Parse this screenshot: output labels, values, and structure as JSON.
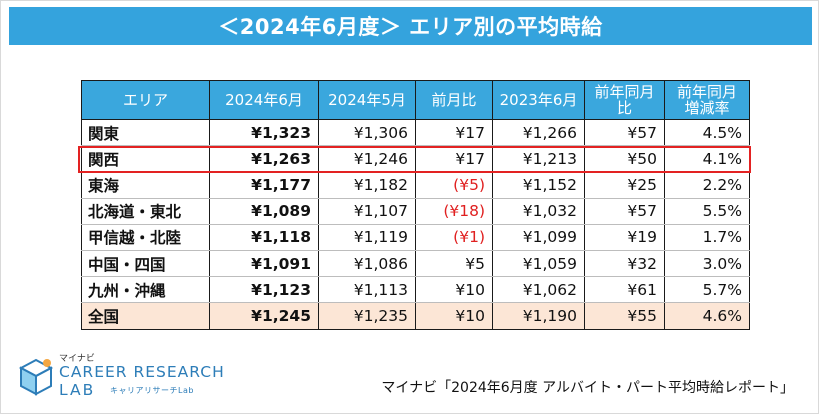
{
  "title": "＜2024年6月度＞ エリア別の平均時給",
  "table": {
    "headers": [
      "エリア",
      "2024年6月",
      "2024年5月",
      "前月比",
      "2023年6月",
      "前年同月比",
      "前年同月\n増減率"
    ],
    "rows": [
      [
        "関東",
        "¥1,323",
        "¥1,306",
        "¥17",
        "¥1,266",
        "¥57",
        "4.5%"
      ],
      [
        "関西",
        "¥1,263",
        "¥1,246",
        "¥17",
        "¥1,213",
        "¥50",
        "4.1%"
      ],
      [
        "東海",
        "¥1,177",
        "¥1,182",
        "(¥5)",
        "¥1,152",
        "¥25",
        "2.2%"
      ],
      [
        "北海道・東北",
        "¥1,089",
        "¥1,107",
        "(¥18)",
        "¥1,032",
        "¥57",
        "5.5%"
      ],
      [
        "甲信越・北陸",
        "¥1,118",
        "¥1,119",
        "(¥1)",
        "¥1,099",
        "¥19",
        "1.7%"
      ],
      [
        "中国・四国",
        "¥1,091",
        "¥1,086",
        "¥5",
        "¥1,059",
        "¥32",
        "3.0%"
      ],
      [
        "九州・沖縄",
        "¥1,123",
        "¥1,113",
        "¥10",
        "¥1,062",
        "¥61",
        "5.7%"
      ],
      [
        "全国",
        "¥1,245",
        "¥1,235",
        "¥10",
        "¥1,190",
        "¥55",
        "4.6%"
      ]
    ],
    "highlighted_row": "関西",
    "colors": {
      "header_bg": "#3aa7dd",
      "total_row_bg": "#fce6d6",
      "negative_text": "#e02020",
      "highlight_border": "#e32222"
    }
  },
  "logo": {
    "brand": "マイナビ",
    "line1": "CAREER RESEARCH",
    "line2": "LAB",
    "tagline": "キャリアリサーチLab",
    "icon": "cube-icon"
  },
  "source": "マイナビ「2024年6月度 アルバイト・パート平均時給レポート」"
}
